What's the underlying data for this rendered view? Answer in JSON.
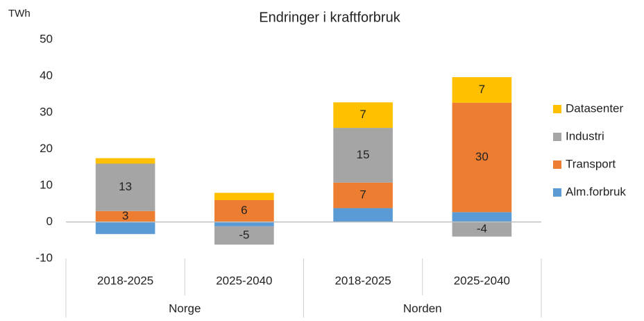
{
  "chart_data": {
    "type": "stacked-bar",
    "title": "Endringer i kraftforbruk",
    "y_label": "TWh",
    "groups": [
      {
        "name": "Norge",
        "categories": [
          "2018-2025",
          "2025-2040"
        ]
      },
      {
        "name": "Norden",
        "categories": [
          "2018-2025",
          "2025-2040"
        ]
      }
    ],
    "series": [
      {
        "name": "Alm.forbruk",
        "color": "#5b9bd5",
        "values": [
          -3.3,
          -1.2,
          3.8,
          2.7
        ]
      },
      {
        "name": "Transport",
        "color": "#ed7d31",
        "values": [
          3,
          6,
          7,
          30
        ],
        "value_labels": [
          "3",
          "6",
          "7",
          "30"
        ]
      },
      {
        "name": "Industri",
        "color": "#a5a5a5",
        "values": [
          13,
          -5,
          15,
          -4
        ],
        "value_labels": [
          "13",
          "-5",
          "15",
          "-4"
        ]
      },
      {
        "name": "Datasenter",
        "color": "#ffc000",
        "values": [
          1.5,
          2,
          7,
          7
        ],
        "value_labels": [
          null,
          null,
          "7",
          "7"
        ]
      }
    ],
    "ylim": [
      -10,
      50
    ],
    "yticks": [
      -10,
      0,
      10,
      20,
      30,
      40,
      50
    ],
    "grid": false,
    "legend": "right"
  }
}
